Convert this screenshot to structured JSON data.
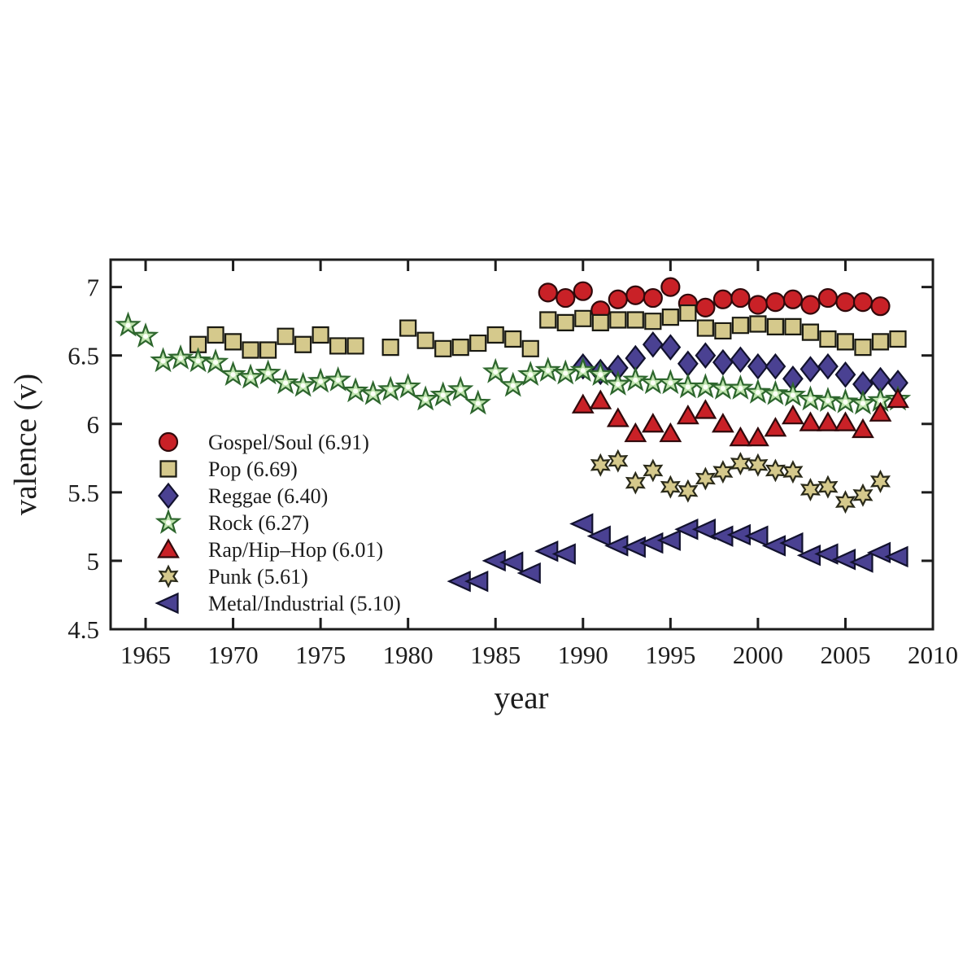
{
  "page": {
    "background": "#ffffff"
  },
  "chart_data": {
    "type": "scatter",
    "title": "",
    "xlabel": "year",
    "ylabel": "valence (v)",
    "xlim": [
      1963,
      2010
    ],
    "ylim": [
      4.5,
      7.2
    ],
    "grid": false,
    "axis_color": "#1c1c1c",
    "x_ticks": [
      {
        "value": 1965,
        "label": "1965"
      },
      {
        "value": 1970,
        "label": "1970"
      },
      {
        "value": 1975,
        "label": "1975"
      },
      {
        "value": 1980,
        "label": "1980"
      },
      {
        "value": 1985,
        "label": "1985"
      },
      {
        "value": 1990,
        "label": "1990"
      },
      {
        "value": 1995,
        "label": "1995"
      },
      {
        "value": 2000,
        "label": "2000"
      },
      {
        "value": 2005,
        "label": "2005"
      },
      {
        "value": 2010,
        "label": "2010"
      }
    ],
    "y_ticks": [
      {
        "value": 7,
        "label": "7"
      },
      {
        "value": 6.5,
        "label": "6.5"
      },
      {
        "value": 6,
        "label": "6"
      },
      {
        "value": 5.5,
        "label": "5.5"
      },
      {
        "value": 5,
        "label": "5"
      },
      {
        "value": 4.5,
        "label": "4.5"
      }
    ],
    "legend": {
      "position": "inside-left",
      "frame": false
    },
    "series": [
      {
        "name": "Gospel/Soul",
        "legend_label": "Gospel/Soul (6.91)",
        "mean": 6.91,
        "marker": "circle",
        "fill": "#c92127",
        "edge": "#30090b",
        "points": [
          [
            1988,
            6.96
          ],
          [
            1989,
            6.92
          ],
          [
            1990,
            6.97
          ],
          [
            1991,
            6.83
          ],
          [
            1992,
            6.91
          ],
          [
            1993,
            6.94
          ],
          [
            1994,
            6.92
          ],
          [
            1995,
            7.0
          ],
          [
            1996,
            6.88
          ],
          [
            1997,
            6.85
          ],
          [
            1998,
            6.91
          ],
          [
            1999,
            6.92
          ],
          [
            2000,
            6.87
          ],
          [
            2001,
            6.89
          ],
          [
            2002,
            6.91
          ],
          [
            2003,
            6.87
          ],
          [
            2004,
            6.92
          ],
          [
            2005,
            6.89
          ],
          [
            2006,
            6.89
          ],
          [
            2007,
            6.86
          ]
        ]
      },
      {
        "name": "Pop",
        "legend_label": "Pop (6.69)",
        "mean": 6.69,
        "marker": "square",
        "fill": "#d5c98c",
        "edge": "#1a1a12",
        "points": [
          [
            1968,
            6.58
          ],
          [
            1969,
            6.65
          ],
          [
            1970,
            6.6
          ],
          [
            1971,
            6.54
          ],
          [
            1972,
            6.54
          ],
          [
            1973,
            6.64
          ],
          [
            1974,
            6.58
          ],
          [
            1975,
            6.65
          ],
          [
            1976,
            6.57
          ],
          [
            1977,
            6.57
          ],
          [
            1979,
            6.56
          ],
          [
            1980,
            6.7
          ],
          [
            1981,
            6.61
          ],
          [
            1982,
            6.55
          ],
          [
            1983,
            6.56
          ],
          [
            1984,
            6.59
          ],
          [
            1985,
            6.65
          ],
          [
            1986,
            6.62
          ],
          [
            1987,
            6.55
          ],
          [
            1988,
            6.76
          ],
          [
            1989,
            6.74
          ],
          [
            1990,
            6.77
          ],
          [
            1991,
            6.74
          ],
          [
            1992,
            6.76
          ],
          [
            1993,
            6.76
          ],
          [
            1994,
            6.75
          ],
          [
            1995,
            6.78
          ],
          [
            1996,
            6.81
          ],
          [
            1997,
            6.7
          ],
          [
            1998,
            6.68
          ],
          [
            1999,
            6.72
          ],
          [
            2000,
            6.73
          ],
          [
            2001,
            6.71
          ],
          [
            2002,
            6.71
          ],
          [
            2003,
            6.67
          ],
          [
            2004,
            6.62
          ],
          [
            2005,
            6.6
          ],
          [
            2006,
            6.56
          ],
          [
            2007,
            6.6
          ],
          [
            2008,
            6.62
          ]
        ]
      },
      {
        "name": "Reggae",
        "legend_label": "Reggae (6.40)",
        "mean": 6.4,
        "marker": "diamond",
        "fill": "#4a4192",
        "edge": "#12122e",
        "points": [
          [
            1990,
            6.42
          ],
          [
            1991,
            6.38
          ],
          [
            1992,
            6.41
          ],
          [
            1993,
            6.48
          ],
          [
            1994,
            6.58
          ],
          [
            1995,
            6.56
          ],
          [
            1996,
            6.44
          ],
          [
            1997,
            6.5
          ],
          [
            1998,
            6.45
          ],
          [
            1999,
            6.47
          ],
          [
            2000,
            6.42
          ],
          [
            2001,
            6.42
          ],
          [
            2002,
            6.33
          ],
          [
            2003,
            6.4
          ],
          [
            2004,
            6.42
          ],
          [
            2005,
            6.36
          ],
          [
            2006,
            6.29
          ],
          [
            2007,
            6.32
          ],
          [
            2008,
            6.3
          ]
        ]
      },
      {
        "name": "Rock",
        "legend_label": "Rock (6.27)",
        "mean": 6.27,
        "marker": "star5",
        "fill": "#bfe3ae",
        "edge": "#2d662d",
        "center_dot": "#fbfff6",
        "points": [
          [
            1964,
            6.72
          ],
          [
            1965,
            6.64
          ],
          [
            1966,
            6.46
          ],
          [
            1967,
            6.48
          ],
          [
            1968,
            6.46
          ],
          [
            1969,
            6.45
          ],
          [
            1970,
            6.36
          ],
          [
            1971,
            6.34
          ],
          [
            1972,
            6.37
          ],
          [
            1973,
            6.3
          ],
          [
            1974,
            6.28
          ],
          [
            1975,
            6.31
          ],
          [
            1976,
            6.32
          ],
          [
            1977,
            6.24
          ],
          [
            1978,
            6.22
          ],
          [
            1979,
            6.25
          ],
          [
            1980,
            6.27
          ],
          [
            1981,
            6.18
          ],
          [
            1982,
            6.21
          ],
          [
            1983,
            6.25
          ],
          [
            1984,
            6.15
          ],
          [
            1985,
            6.38
          ],
          [
            1986,
            6.28
          ],
          [
            1987,
            6.36
          ],
          [
            1988,
            6.39
          ],
          [
            1989,
            6.37
          ],
          [
            1990,
            6.39
          ],
          [
            1991,
            6.36
          ],
          [
            1992,
            6.29
          ],
          [
            1993,
            6.32
          ],
          [
            1994,
            6.3
          ],
          [
            1995,
            6.3
          ],
          [
            1996,
            6.27
          ],
          [
            1997,
            6.27
          ],
          [
            1998,
            6.26
          ],
          [
            1999,
            6.26
          ],
          [
            2000,
            6.23
          ],
          [
            2001,
            6.22
          ],
          [
            2002,
            6.21
          ],
          [
            2003,
            6.18
          ],
          [
            2004,
            6.17
          ],
          [
            2005,
            6.16
          ],
          [
            2006,
            6.15
          ],
          [
            2007,
            6.17
          ],
          [
            2008,
            6.18
          ]
        ]
      },
      {
        "name": "Rap/Hip–Hop",
        "legend_label": "Rap/Hip–Hop (6.01)",
        "mean": 6.01,
        "marker": "triangle-up",
        "fill": "#c92127",
        "edge": "#30090b",
        "points": [
          [
            1990,
            6.14
          ],
          [
            1991,
            6.17
          ],
          [
            1992,
            6.04
          ],
          [
            1993,
            5.93
          ],
          [
            1994,
            6.0
          ],
          [
            1995,
            5.93
          ],
          [
            1996,
            6.06
          ],
          [
            1997,
            6.1
          ],
          [
            1998,
            6.0
          ],
          [
            1999,
            5.9
          ],
          [
            2000,
            5.9
          ],
          [
            2001,
            5.97
          ],
          [
            2002,
            6.06
          ],
          [
            2003,
            6.01
          ],
          [
            2004,
            6.01
          ],
          [
            2005,
            6.01
          ],
          [
            2006,
            5.96
          ],
          [
            2007,
            6.08
          ],
          [
            2008,
            6.18
          ]
        ]
      },
      {
        "name": "Punk",
        "legend_label": "Punk (5.61)",
        "mean": 5.61,
        "marker": "star6",
        "fill": "#d5c98c",
        "edge": "#2b2b1a",
        "points": [
          [
            1991,
            5.7
          ],
          [
            1992,
            5.73
          ],
          [
            1993,
            5.57
          ],
          [
            1994,
            5.66
          ],
          [
            1995,
            5.54
          ],
          [
            1996,
            5.51
          ],
          [
            1997,
            5.6
          ],
          [
            1998,
            5.65
          ],
          [
            1999,
            5.71
          ],
          [
            2000,
            5.7
          ],
          [
            2001,
            5.66
          ],
          [
            2002,
            5.65
          ],
          [
            2003,
            5.52
          ],
          [
            2004,
            5.54
          ],
          [
            2005,
            5.43
          ],
          [
            2006,
            5.48
          ],
          [
            2007,
            5.58
          ]
        ]
      },
      {
        "name": "Metal/Industrial",
        "legend_label": "Metal/Industrial (5.10)",
        "mean": 5.1,
        "marker": "triangle-left",
        "fill": "#4a4192",
        "edge": "#12122e",
        "points": [
          [
            1983,
            4.85
          ],
          [
            1984,
            4.85
          ],
          [
            1985,
            5.0
          ],
          [
            1986,
            4.99
          ],
          [
            1987,
            4.91
          ],
          [
            1988,
            5.07
          ],
          [
            1989,
            5.05
          ],
          [
            1990,
            5.27
          ],
          [
            1991,
            5.18
          ],
          [
            1992,
            5.11
          ],
          [
            1993,
            5.1
          ],
          [
            1994,
            5.13
          ],
          [
            1995,
            5.15
          ],
          [
            1996,
            5.23
          ],
          [
            1997,
            5.23
          ],
          [
            1998,
            5.18
          ],
          [
            1999,
            5.19
          ],
          [
            2000,
            5.18
          ],
          [
            2001,
            5.11
          ],
          [
            2002,
            5.13
          ],
          [
            2003,
            5.04
          ],
          [
            2004,
            5.05
          ],
          [
            2005,
            5.01
          ],
          [
            2006,
            4.99
          ],
          [
            2007,
            5.06
          ],
          [
            2008,
            5.03
          ]
        ]
      }
    ]
  }
}
